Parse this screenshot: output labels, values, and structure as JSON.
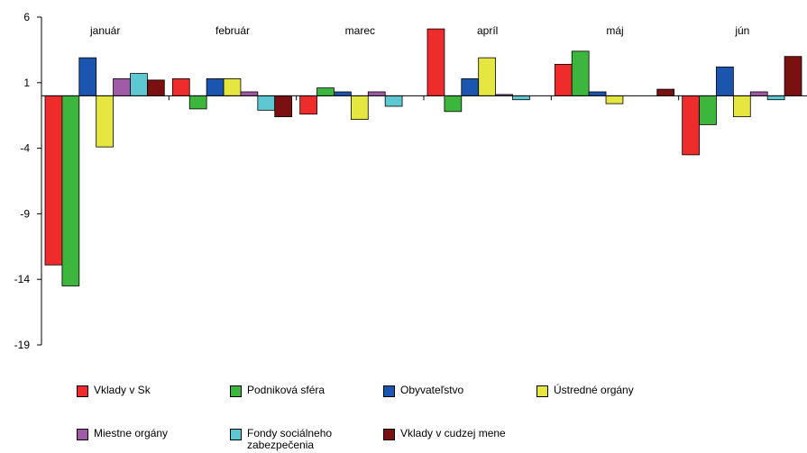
{
  "chart_data": {
    "type": "bar",
    "categories": [
      "január",
      "február",
      "marec",
      "apríl",
      "máj",
      "jún"
    ],
    "series": [
      {
        "name": "Vklady v Sk",
        "color": "#ee2c2c",
        "values": [
          -12.9,
          1.3,
          -1.4,
          5.1,
          2.4,
          -4.5
        ]
      },
      {
        "name": "Podniková sféra",
        "color": "#3cb63c",
        "values": [
          -14.5,
          -1.0,
          0.6,
          -1.2,
          3.4,
          -2.2
        ]
      },
      {
        "name": "Obyvateľstvo",
        "color": "#1c55b0",
        "values": [
          2.9,
          1.3,
          0.3,
          1.3,
          0.3,
          2.2
        ]
      },
      {
        "name": "Ústredné orgány",
        "color": "#e6e640",
        "values": [
          -3.9,
          1.3,
          -1.8,
          2.9,
          -0.6,
          -1.6
        ]
      },
      {
        "name": "Miestne orgány",
        "color": "#a05aa8",
        "values": [
          1.3,
          0.3,
          0.3,
          0.1,
          0,
          0.3
        ]
      },
      {
        "name": "Fondy sociálneho zabezpečenia",
        "color": "#5ec8d2",
        "values": [
          1.7,
          -1.1,
          -0.8,
          -0.3,
          0,
          -0.3
        ]
      },
      {
        "name": "Vklady v cudzej mene",
        "color": "#7a1010",
        "values": [
          1.2,
          -1.6,
          0,
          0,
          0.5,
          3.0
        ]
      }
    ],
    "yticks": [
      6,
      1,
      -4,
      -9,
      -14,
      -19
    ],
    "ylim": [
      -19,
      6
    ],
    "xlabel": "",
    "ylabel": "",
    "grid": false,
    "legend_position": "bottom"
  }
}
